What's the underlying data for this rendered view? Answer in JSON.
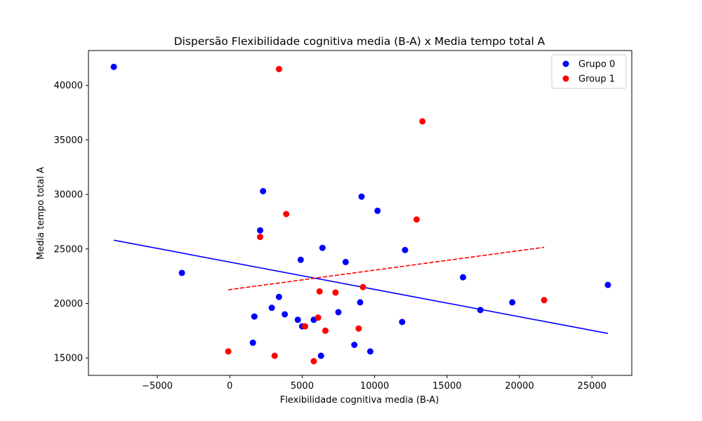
{
  "chart_data": {
    "type": "scatter",
    "title": "Dispersão Flexibilidade cognitiva media (B-A) x Media tempo total A",
    "xlabel": "Flexibilidade cognitiva media (B-A)",
    "ylabel": "Media tempo total A",
    "xlim": [
      -9750,
      27750
    ],
    "ylim": [
      13400,
      43200
    ],
    "x_ticks": [
      -5000,
      0,
      5000,
      10000,
      15000,
      20000,
      25000
    ],
    "x_tick_labels": [
      "−5000",
      "0",
      "5000",
      "10000",
      "15000",
      "20000",
      "25000"
    ],
    "y_ticks": [
      15000,
      20000,
      25000,
      30000,
      35000,
      40000
    ],
    "y_tick_labels": [
      "15000",
      "20000",
      "25000",
      "30000",
      "35000",
      "40000"
    ],
    "grid": false,
    "legend_position": "top-right",
    "series": [
      {
        "name": "Grupo 0",
        "color": "#0000ff",
        "points": [
          [
            -8000,
            41700
          ],
          [
            -3300,
            22800
          ],
          [
            1600,
            16400
          ],
          [
            1700,
            18800
          ],
          [
            2100,
            26700
          ],
          [
            2300,
            30300
          ],
          [
            2900,
            19600
          ],
          [
            3400,
            20600
          ],
          [
            3800,
            19000
          ],
          [
            4700,
            18500
          ],
          [
            4900,
            24000
          ],
          [
            5000,
            17900
          ],
          [
            5800,
            18500
          ],
          [
            6300,
            15200
          ],
          [
            6400,
            25100
          ],
          [
            7500,
            19200
          ],
          [
            8000,
            23800
          ],
          [
            8600,
            16200
          ],
          [
            9000,
            20100
          ],
          [
            9100,
            29800
          ],
          [
            9700,
            15600
          ],
          [
            10200,
            28500
          ],
          [
            11900,
            18300
          ],
          [
            12100,
            24900
          ],
          [
            16100,
            22400
          ],
          [
            17300,
            19400
          ],
          [
            19500,
            20100
          ],
          [
            26100,
            21700
          ]
        ],
        "trend": {
          "x": [
            -8000,
            26100
          ],
          "y": [
            25800,
            17250
          ],
          "style": "solid"
        }
      },
      {
        "name": "Group 1",
        "color": "#ff0000",
        "points": [
          [
            -100,
            15600
          ],
          [
            2100,
            26100
          ],
          [
            3100,
            15200
          ],
          [
            3400,
            41500
          ],
          [
            3900,
            28200
          ],
          [
            5200,
            17900
          ],
          [
            5800,
            14700
          ],
          [
            6100,
            18700
          ],
          [
            6200,
            21100
          ],
          [
            6600,
            17500
          ],
          [
            7300,
            21000
          ],
          [
            8900,
            17700
          ],
          [
            9200,
            21500
          ],
          [
            12900,
            27700
          ],
          [
            13300,
            36700
          ],
          [
            21700,
            20300
          ]
        ],
        "trend": {
          "x": [
            -100,
            21700
          ],
          "y": [
            21250,
            25150
          ],
          "style": "dashed"
        }
      }
    ]
  }
}
